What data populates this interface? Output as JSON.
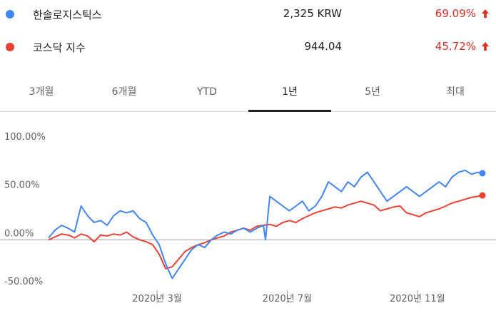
{
  "legend": [
    {
      "name": "한솔로지스틱스",
      "price": "2,325 KRW",
      "change": "69.09%",
      "color": "#4285f4"
    },
    {
      "name": "코스닥 지수",
      "price": "944.04",
      "change": "45.72%",
      "color": "#ea4335"
    }
  ],
  "change_color": "#d93025",
  "tabs": [
    {
      "label": "3개월",
      "active": false
    },
    {
      "label": "6개월",
      "active": false
    },
    {
      "label": "YTD",
      "active": false
    },
    {
      "label": "1년",
      "active": true
    },
    {
      "label": "5년",
      "active": false
    },
    {
      "label": "최대",
      "active": false
    }
  ],
  "chart_data": {
    "type": "line",
    "yticks": [
      "100.00%",
      "50.00%",
      "0.00%",
      "-50.00%"
    ],
    "ytick_values": [
      100,
      50,
      0,
      -50
    ],
    "ylim": [
      -50,
      100
    ],
    "xticks": [
      "2020년 3월",
      "2020년 7월",
      "2020년 11월"
    ],
    "xtick_values": [
      0.25,
      0.55,
      0.85
    ],
    "series": [
      {
        "name": "한솔로지스틱스",
        "color": "#4285f4",
        "x": [
          0,
          0.015,
          0.03,
          0.045,
          0.06,
          0.075,
          0.09,
          0.105,
          0.12,
          0.135,
          0.15,
          0.165,
          0.18,
          0.195,
          0.21,
          0.225,
          0.24,
          0.255,
          0.27,
          0.285,
          0.3,
          0.315,
          0.33,
          0.345,
          0.36,
          0.375,
          0.39,
          0.405,
          0.42,
          0.435,
          0.45,
          0.465,
          0.48,
          0.495,
          0.5,
          0.51,
          0.525,
          0.54,
          0.555,
          0.57,
          0.585,
          0.6,
          0.615,
          0.63,
          0.645,
          0.66,
          0.675,
          0.69,
          0.705,
          0.72,
          0.735,
          0.75,
          0.765,
          0.78,
          0.795,
          0.81,
          0.825,
          0.84,
          0.855,
          0.87,
          0.885,
          0.9,
          0.915,
          0.93,
          0.945,
          0.96,
          0.975,
          0.99,
          1.0
        ],
        "values": [
          2,
          10,
          15,
          12,
          8,
          35,
          25,
          18,
          20,
          15,
          25,
          30,
          28,
          30,
          22,
          18,
          5,
          -5,
          -25,
          -40,
          -30,
          -20,
          -10,
          -5,
          -8,
          0,
          5,
          8,
          6,
          10,
          12,
          8,
          12,
          15,
          0,
          45,
          40,
          35,
          30,
          35,
          40,
          30,
          35,
          45,
          60,
          55,
          50,
          60,
          55,
          65,
          70,
          60,
          50,
          40,
          45,
          50,
          55,
          50,
          45,
          50,
          55,
          60,
          55,
          65,
          70,
          72,
          68,
          70,
          69
        ]
      },
      {
        "name": "코스닥 지수",
        "color": "#ea4335",
        "x": [
          0,
          0.015,
          0.03,
          0.045,
          0.06,
          0.075,
          0.09,
          0.105,
          0.12,
          0.135,
          0.15,
          0.165,
          0.18,
          0.195,
          0.21,
          0.225,
          0.24,
          0.255,
          0.27,
          0.285,
          0.3,
          0.315,
          0.33,
          0.345,
          0.36,
          0.375,
          0.39,
          0.405,
          0.42,
          0.435,
          0.45,
          0.465,
          0.48,
          0.495,
          0.51,
          0.525,
          0.54,
          0.555,
          0.57,
          0.585,
          0.6,
          0.615,
          0.63,
          0.645,
          0.66,
          0.675,
          0.69,
          0.705,
          0.72,
          0.735,
          0.75,
          0.765,
          0.78,
          0.795,
          0.81,
          0.825,
          0.84,
          0.855,
          0.87,
          0.885,
          0.9,
          0.915,
          0.93,
          0.945,
          0.96,
          0.975,
          0.99,
          1.0
        ],
        "values": [
          0,
          3,
          6,
          5,
          2,
          6,
          4,
          -2,
          5,
          4,
          6,
          5,
          8,
          3,
          0,
          -2,
          -5,
          -15,
          -30,
          -28,
          -20,
          -12,
          -8,
          -5,
          -3,
          0,
          2,
          4,
          8,
          10,
          12,
          10,
          14,
          15,
          16,
          14,
          18,
          20,
          18,
          22,
          25,
          28,
          30,
          32,
          34,
          33,
          36,
          38,
          40,
          38,
          36,
          30,
          32,
          34,
          35,
          28,
          26,
          24,
          28,
          30,
          32,
          35,
          38,
          40,
          42,
          44,
          45,
          46
        ]
      }
    ]
  }
}
